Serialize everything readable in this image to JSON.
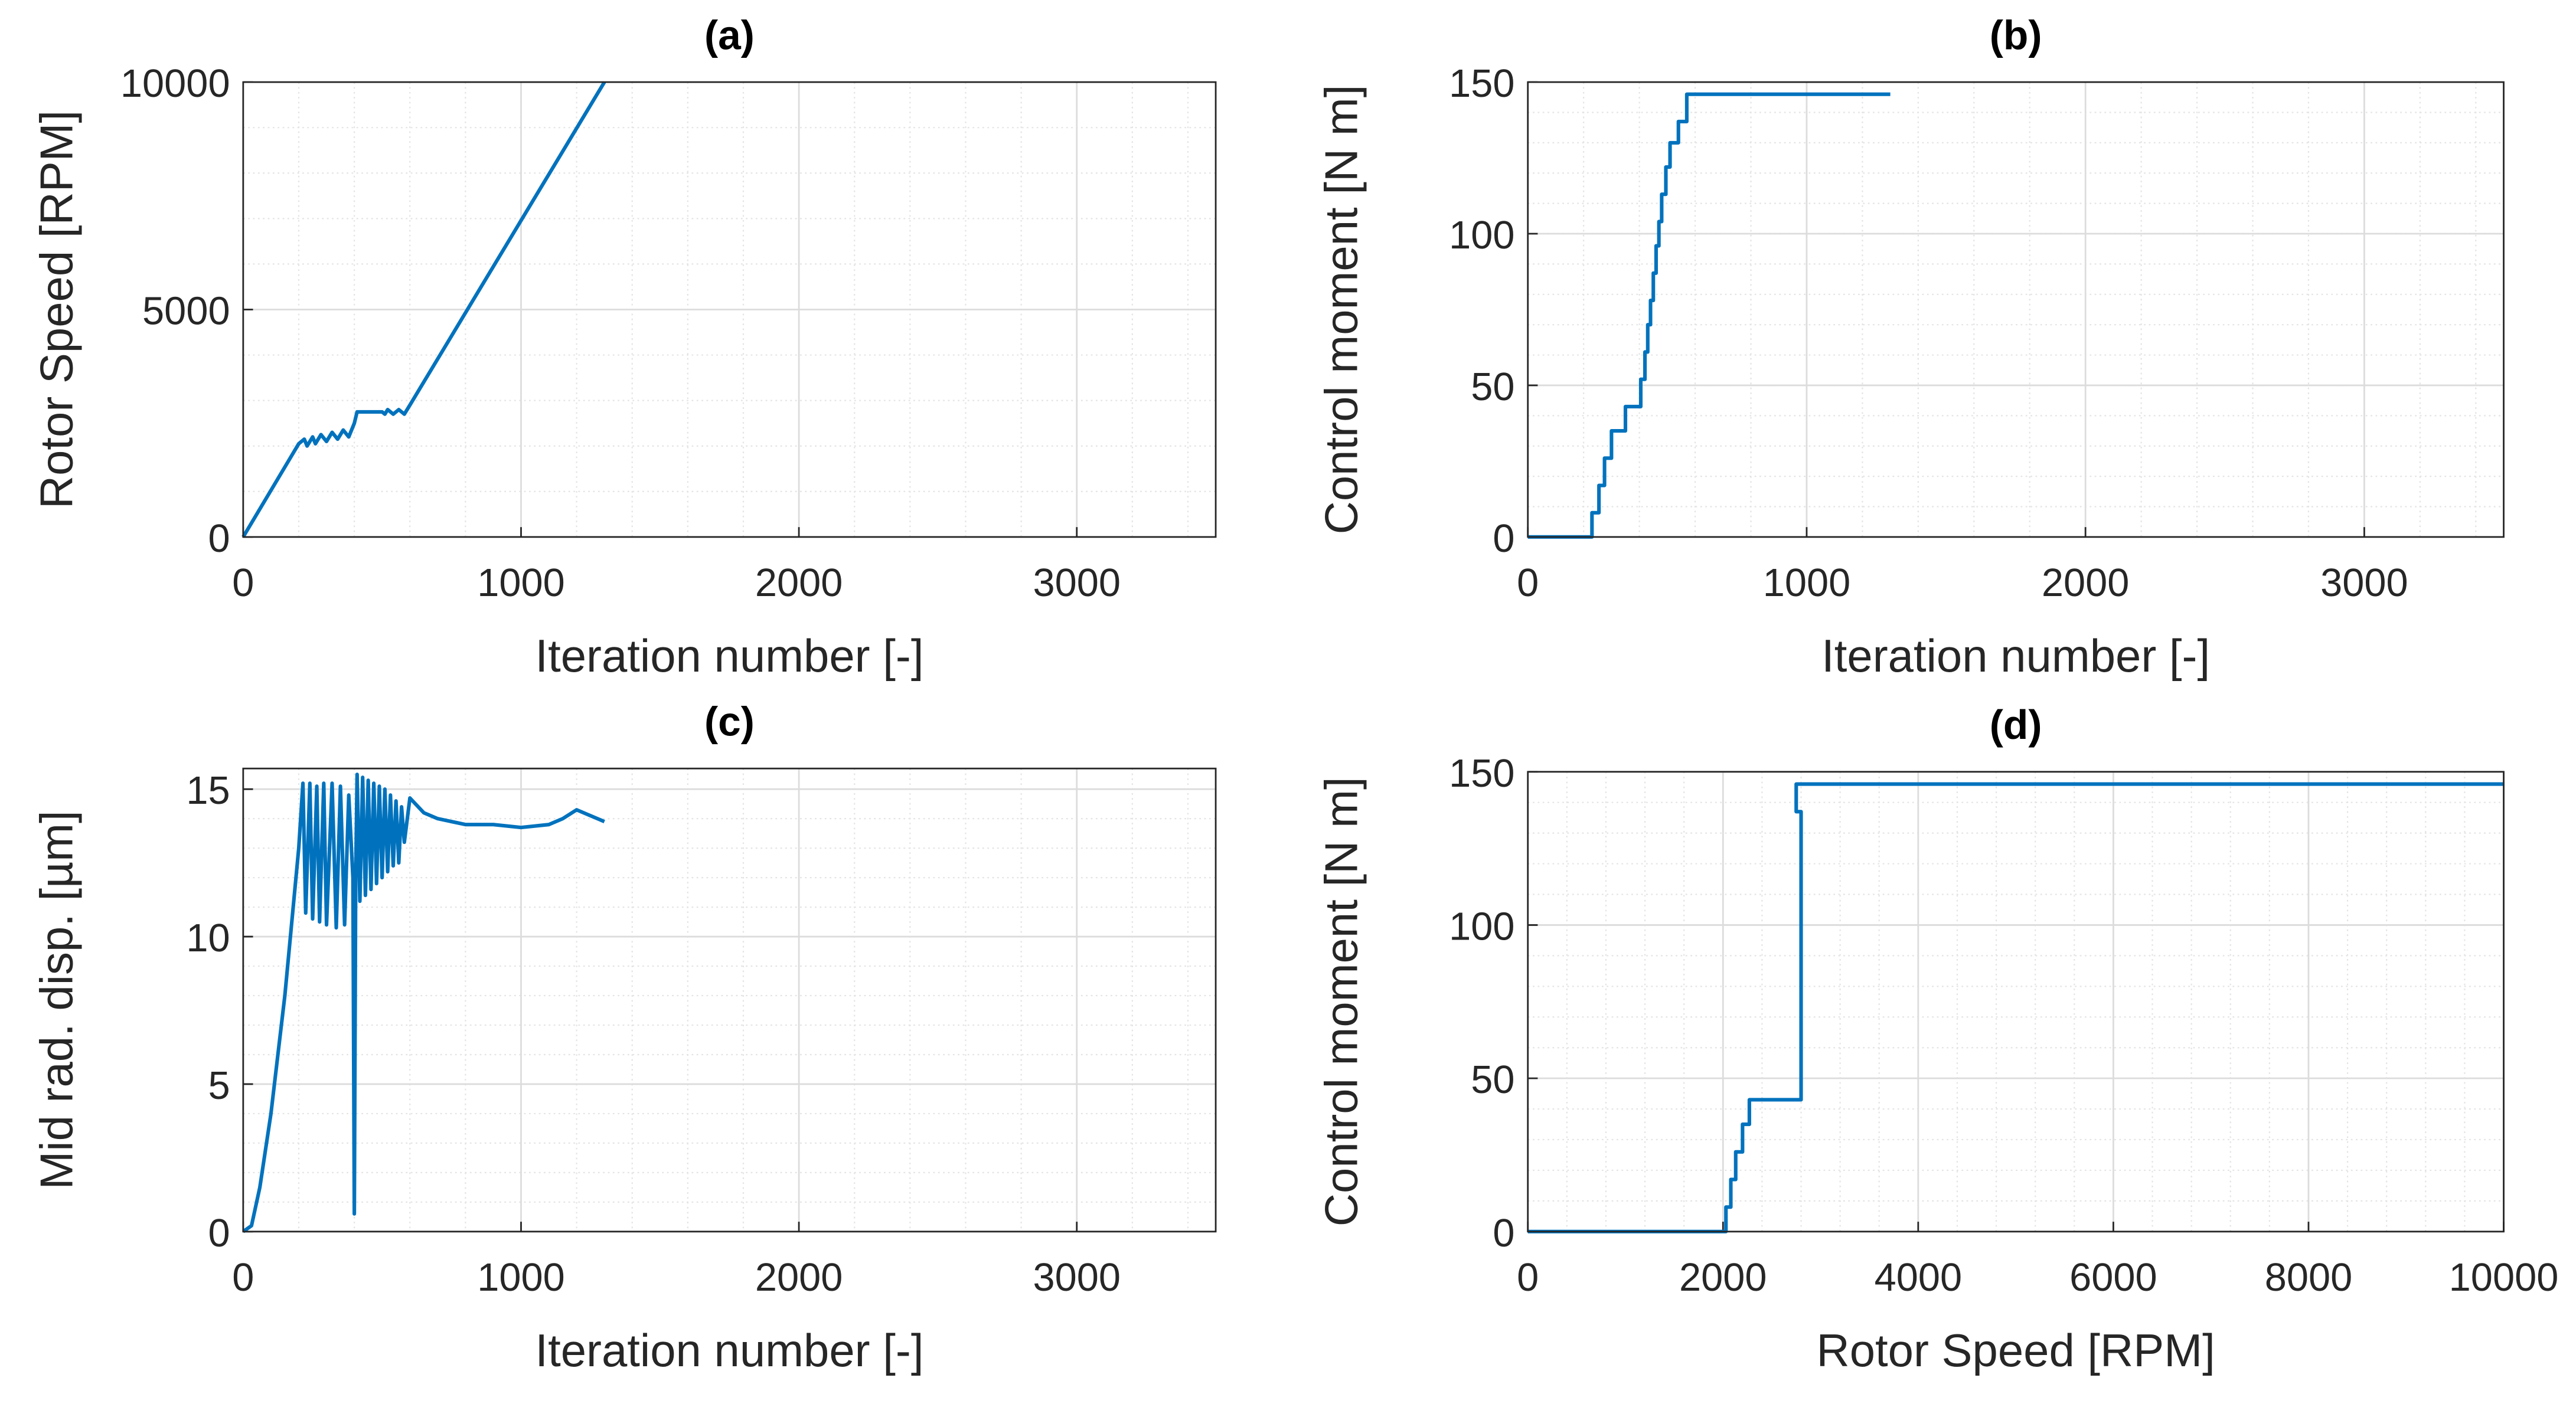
{
  "chart_data": [
    {
      "type": "line",
      "title": "(a)",
      "xlabel": "Iteration number [-]",
      "ylabel": "Rotor Speed [RPM]",
      "color": "#0072bd",
      "x": [
        0,
        200,
        220,
        230,
        250,
        260,
        280,
        300,
        320,
        340,
        360,
        380,
        400,
        410,
        500,
        510,
        520,
        540,
        560,
        580,
        600,
        1300
      ],
      "values": [
        0,
        2050,
        2150,
        2000,
        2200,
        2050,
        2250,
        2100,
        2300,
        2150,
        2350,
        2200,
        2500,
        2750,
        2750,
        2700,
        2800,
        2700,
        2800,
        2700,
        2900,
        10000
      ],
      "xlim": [
        0,
        3500
      ],
      "xticks": [
        0,
        1000,
        2000,
        3000
      ],
      "ylim": [
        0,
        10000
      ],
      "yticks": [
        0,
        5000,
        10000
      ],
      "grid": true,
      "minor_grid": true
    },
    {
      "type": "line",
      "title": "(b)",
      "xlabel": "Iteration number [-]",
      "ylabel": "Control moment [N m]",
      "color": "#0072bd",
      "x": [
        0,
        230,
        230,
        255,
        255,
        275,
        275,
        300,
        300,
        350,
        350,
        405,
        405,
        420,
        420,
        430,
        430,
        440,
        440,
        450,
        450,
        460,
        460,
        470,
        470,
        480,
        480,
        495,
        495,
        510,
        510,
        540,
        540,
        570,
        570,
        1300
      ],
      "values": [
        0,
        0,
        8,
        8,
        17,
        17,
        26,
        26,
        35,
        35,
        43,
        43,
        52,
        52,
        61,
        61,
        70,
        70,
        78,
        78,
        87,
        87,
        96,
        96,
        104,
        104,
        113,
        113,
        122,
        122,
        130,
        130,
        137,
        137,
        146,
        146
      ],
      "xlim": [
        0,
        3500
      ],
      "xticks": [
        0,
        1000,
        2000,
        3000
      ],
      "ylim": [
        0,
        150
      ],
      "yticks": [
        0,
        50,
        100,
        150
      ],
      "grid": true,
      "minor_grid": true
    },
    {
      "type": "line",
      "title": "(c)",
      "xlabel": "Iteration number [-]",
      "ylabel": "Mid rad. disp. [µm]",
      "color": "#0072bd",
      "x": [
        0,
        30,
        60,
        100,
        150,
        200,
        215,
        225,
        240,
        250,
        265,
        275,
        290,
        300,
        320,
        335,
        350,
        365,
        380,
        395,
        400,
        405,
        410,
        420,
        430,
        440,
        450,
        460,
        470,
        480,
        490,
        500,
        510,
        520,
        530,
        540,
        550,
        560,
        570,
        580,
        600,
        650,
        700,
        800,
        900,
        1000,
        1100,
        1150,
        1200,
        1250,
        1300
      ],
      "values": [
        0,
        0.2,
        1.5,
        4,
        8,
        13,
        15.2,
        10.8,
        15.2,
        10.6,
        15.1,
        10.5,
        15.2,
        10.4,
        15.2,
        10.3,
        15.1,
        10.4,
        14.8,
        12,
        0.6,
        12,
        15.5,
        11.2,
        15.4,
        11.4,
        15.3,
        11.6,
        15.2,
        11.8,
        15.1,
        12,
        15,
        12.2,
        14.8,
        12.4,
        14.6,
        12.5,
        14.4,
        13.2,
        14.7,
        14.2,
        14,
        13.8,
        13.8,
        13.7,
        13.8,
        14,
        14.3,
        14.1,
        13.9
      ],
      "xlim": [
        0,
        3500
      ],
      "xticks": [
        0,
        1000,
        2000,
        3000
      ],
      "ylim": [
        0,
        15.7
      ],
      "yticks": [
        0,
        5,
        10,
        15
      ],
      "grid": true,
      "minor_grid": true
    },
    {
      "type": "line",
      "title": "(d)",
      "xlabel": "Rotor Speed [RPM]",
      "ylabel": "Control moment [N m]",
      "color": "#0072bd",
      "x": [
        0,
        2030,
        2030,
        2080,
        2080,
        2130,
        2130,
        2200,
        2200,
        2270,
        2270,
        2800,
        2800,
        2750,
        2750,
        10000
      ],
      "values": [
        0,
        0,
        8,
        8,
        17,
        17,
        26,
        26,
        35,
        35,
        43,
        43,
        137,
        137,
        146,
        146
      ],
      "xlim": [
        0,
        10000
      ],
      "xticks": [
        0,
        2000,
        4000,
        6000,
        8000,
        10000
      ],
      "ylim": [
        0,
        150
      ],
      "yticks": [
        0,
        50,
        100,
        150
      ],
      "grid": true,
      "minor_grid": true
    }
  ]
}
